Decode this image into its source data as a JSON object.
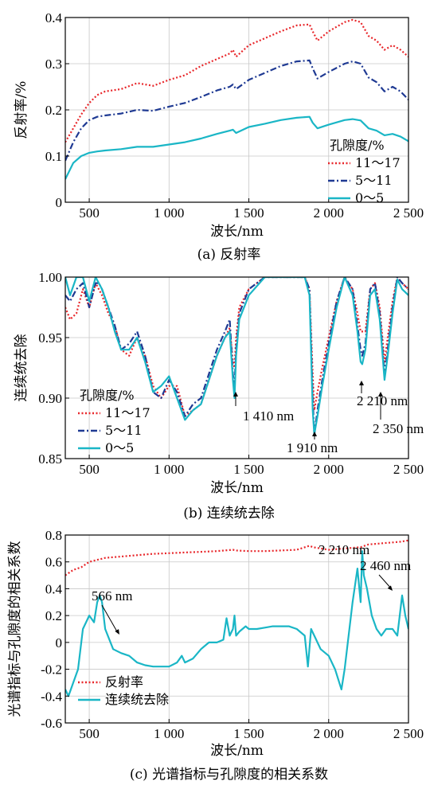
{
  "colors": {
    "red": "#e8262a",
    "blue": "#1f3a93",
    "cyan": "#1ab6c6"
  },
  "chart_data": [
    {
      "type": "line",
      "caption": "(a) 反射率",
      "xlabel": "波长/nm",
      "ylabel": "反射率/%",
      "xlim": [
        350,
        2500
      ],
      "ylim": [
        0,
        0.4
      ],
      "xticks": [
        500,
        1000,
        1500,
        2000,
        2500
      ],
      "xtick_labels": [
        "500",
        "1 000",
        "1 500",
        "2 000",
        "2 500"
      ],
      "yticks": [
        0,
        0.1,
        0.2,
        0.3,
        0.4
      ],
      "ytick_labels": [
        "0",
        "0.1",
        "0.2",
        "0.3",
        "0.4"
      ],
      "legend_title": "孔隙度/%",
      "series": [
        {
          "name": "11～17",
          "style": "dotted",
          "color": "#e8262a",
          "x": [
            350,
            400,
            450,
            500,
            550,
            600,
            700,
            800,
            900,
            1000,
            1100,
            1200,
            1300,
            1380,
            1400,
            1420,
            1500,
            1600,
            1700,
            1800,
            1880,
            1900,
            1930,
            2000,
            2100,
            2150,
            2200,
            2250,
            2300,
            2350,
            2400,
            2450,
            2500
          ],
          "y": [
            0.13,
            0.16,
            0.19,
            0.215,
            0.232,
            0.24,
            0.245,
            0.258,
            0.252,
            0.265,
            0.275,
            0.295,
            0.31,
            0.322,
            0.33,
            0.315,
            0.34,
            0.355,
            0.37,
            0.383,
            0.385,
            0.37,
            0.35,
            0.37,
            0.39,
            0.395,
            0.39,
            0.36,
            0.35,
            0.33,
            0.34,
            0.33,
            0.315
          ]
        },
        {
          "name": "5～11",
          "style": "dashdot",
          "color": "#1f3a93",
          "x": [
            350,
            400,
            450,
            500,
            550,
            600,
            700,
            800,
            900,
            1000,
            1100,
            1200,
            1300,
            1380,
            1400,
            1420,
            1500,
            1600,
            1700,
            1800,
            1880,
            1900,
            1930,
            2000,
            2100,
            2150,
            2200,
            2250,
            2300,
            2350,
            2400,
            2450,
            2500
          ],
          "y": [
            0.09,
            0.13,
            0.16,
            0.178,
            0.185,
            0.188,
            0.192,
            0.2,
            0.198,
            0.207,
            0.215,
            0.228,
            0.242,
            0.25,
            0.255,
            0.245,
            0.265,
            0.28,
            0.295,
            0.305,
            0.307,
            0.29,
            0.268,
            0.282,
            0.3,
            0.305,
            0.3,
            0.27,
            0.26,
            0.24,
            0.25,
            0.24,
            0.222
          ]
        },
        {
          "name": "0～5",
          "style": "solid",
          "color": "#1ab6c6",
          "x": [
            350,
            400,
            450,
            500,
            550,
            600,
            700,
            800,
            900,
            1000,
            1100,
            1200,
            1300,
            1380,
            1400,
            1420,
            1500,
            1600,
            1700,
            1800,
            1880,
            1900,
            1930,
            2000,
            2100,
            2150,
            2200,
            2250,
            2300,
            2350,
            2400,
            2450,
            2500
          ],
          "y": [
            0.05,
            0.085,
            0.1,
            0.107,
            0.11,
            0.112,
            0.115,
            0.12,
            0.12,
            0.125,
            0.13,
            0.138,
            0.148,
            0.155,
            0.157,
            0.15,
            0.163,
            0.17,
            0.178,
            0.183,
            0.185,
            0.172,
            0.16,
            0.168,
            0.178,
            0.18,
            0.177,
            0.16,
            0.155,
            0.145,
            0.148,
            0.142,
            0.132
          ]
        }
      ]
    },
    {
      "type": "line",
      "caption": "(b) 连续统去除",
      "xlabel": "波长/nm",
      "ylabel": "连续统去除",
      "xlim": [
        350,
        2500
      ],
      "ylim": [
        0.85,
        1.0
      ],
      "xticks": [
        500,
        1000,
        1500,
        2000,
        2500
      ],
      "xtick_labels": [
        "500",
        "1 000",
        "1 500",
        "2 000",
        "2 500"
      ],
      "yticks": [
        0.85,
        0.9,
        0.95,
        1.0
      ],
      "ytick_labels": [
        "0.85",
        "0.90",
        "0.95",
        "1.00"
      ],
      "legend_title": "孔隙度/%",
      "annotations": [
        {
          "text": "1 410 nm",
          "x": 1410,
          "y": 0.905
        },
        {
          "text": "1 910 nm",
          "x": 1910,
          "y": 0.868
        },
        {
          "text": "2 210 nm",
          "x": 2210,
          "y": 0.918
        },
        {
          "text": "2 350 nm",
          "x": 2350,
          "y": 0.918
        }
      ],
      "series": [
        {
          "name": "11～17",
          "style": "dotted",
          "color": "#e8262a",
          "x": [
            350,
            380,
            420,
            460,
            500,
            540,
            560,
            580,
            620,
            660,
            700,
            750,
            800,
            850,
            900,
            950,
            1000,
            1050,
            1100,
            1150,
            1200,
            1250,
            1300,
            1350,
            1380,
            1400,
            1410,
            1420,
            1440,
            1500,
            1600,
            1700,
            1800,
            1850,
            1880,
            1900,
            1910,
            1930,
            1960,
            2000,
            2050,
            2100,
            2150,
            2180,
            2200,
            2210,
            2230,
            2260,
            2290,
            2320,
            2350,
            2370,
            2400,
            2430,
            2460,
            2500
          ],
          "y": [
            0.975,
            0.965,
            0.97,
            0.99,
            0.975,
            0.995,
            0.99,
            0.985,
            0.97,
            0.96,
            0.94,
            0.935,
            0.95,
            0.935,
            0.91,
            0.9,
            0.91,
            0.91,
            0.885,
            0.89,
            0.895,
            0.915,
            0.935,
            0.95,
            0.958,
            0.93,
            0.925,
            0.95,
            0.975,
            0.99,
            1.0,
            1.0,
            1.0,
            1.0,
            0.99,
            0.92,
            0.89,
            0.905,
            0.925,
            0.95,
            0.98,
            1.0,
            0.99,
            0.97,
            0.955,
            0.955,
            0.955,
            0.99,
            0.995,
            0.975,
            0.93,
            0.95,
            0.98,
            1.0,
            0.995,
            0.99
          ]
        },
        {
          "name": "5～11",
          "style": "dashdot",
          "color": "#1f3a93",
          "x": [
            350,
            380,
            420,
            460,
            500,
            540,
            560,
            580,
            620,
            660,
            700,
            750,
            800,
            850,
            900,
            950,
            1000,
            1050,
            1100,
            1150,
            1200,
            1250,
            1300,
            1350,
            1380,
            1400,
            1410,
            1420,
            1440,
            1500,
            1600,
            1700,
            1800,
            1850,
            1880,
            1900,
            1910,
            1930,
            1960,
            2000,
            2050,
            2100,
            2150,
            2180,
            2200,
            2210,
            2230,
            2260,
            2290,
            2320,
            2350,
            2370,
            2400,
            2430,
            2460,
            2500
          ],
          "y": [
            0.985,
            0.98,
            0.99,
            0.995,
            0.975,
            0.995,
            0.995,
            0.99,
            0.975,
            0.96,
            0.94,
            0.945,
            0.955,
            0.935,
            0.905,
            0.9,
            0.915,
            0.905,
            0.885,
            0.895,
            0.9,
            0.92,
            0.94,
            0.955,
            0.965,
            0.92,
            0.91,
            0.94,
            0.97,
            0.99,
            1.0,
            1.0,
            1.0,
            1.0,
            0.99,
            0.9,
            0.87,
            0.89,
            0.915,
            0.945,
            0.98,
            1.0,
            0.99,
            0.96,
            0.94,
            0.935,
            0.945,
            0.99,
            0.995,
            0.97,
            0.92,
            0.94,
            0.975,
            1.0,
            0.995,
            0.99
          ]
        },
        {
          "name": "0～5",
          "style": "solid",
          "color": "#1ab6c6",
          "x": [
            350,
            380,
            420,
            460,
            500,
            540,
            560,
            580,
            620,
            660,
            700,
            750,
            800,
            850,
            900,
            950,
            1000,
            1050,
            1100,
            1150,
            1200,
            1250,
            1300,
            1350,
            1380,
            1400,
            1410,
            1420,
            1440,
            1500,
            1600,
            1700,
            1800,
            1850,
            1880,
            1900,
            1910,
            1930,
            1960,
            2000,
            2050,
            2100,
            2150,
            2180,
            2200,
            2210,
            2230,
            2260,
            2290,
            2320,
            2350,
            2370,
            2400,
            2430,
            2460,
            2500
          ],
          "y": [
            1.0,
            0.985,
            1.0,
            1.0,
            0.98,
            1.0,
            0.995,
            0.99,
            0.975,
            0.955,
            0.94,
            0.94,
            0.95,
            0.93,
            0.905,
            0.91,
            0.918,
            0.9,
            0.882,
            0.89,
            0.895,
            0.915,
            0.935,
            0.95,
            0.955,
            0.915,
            0.9,
            0.935,
            0.965,
            0.985,
            1.0,
            1.0,
            1.0,
            1.0,
            0.985,
            0.89,
            0.87,
            0.885,
            0.91,
            0.94,
            0.975,
            1.0,
            0.985,
            0.955,
            0.93,
            0.928,
            0.94,
            0.985,
            0.99,
            0.965,
            0.915,
            0.935,
            0.97,
            0.998,
            0.99,
            0.985
          ]
        }
      ]
    },
    {
      "type": "line",
      "caption": "(c) 光谱指标与孔隙度的相关系数",
      "xlabel": "波长/nm",
      "ylabel": "光谱指标与孔隙度的相关系数",
      "xlim": [
        350,
        2500
      ],
      "ylim": [
        -0.6,
        0.8
      ],
      "xticks": [
        500,
        1000,
        1500,
        2000,
        2500
      ],
      "xtick_labels": [
        "500",
        "1 000",
        "1 500",
        "2 000",
        "2 500"
      ],
      "yticks": [
        -0.6,
        -0.4,
        -0.2,
        0,
        0.2,
        0.4,
        0.6,
        0.8
      ],
      "ytick_labels": [
        "-0.6",
        "-0.4",
        "-0.2",
        "0",
        "0.2",
        "0.4",
        "0.6",
        "0.8"
      ],
      "annotations": [
        {
          "text": "566 nm",
          "x": 566,
          "y": 0.35
        },
        {
          "text": "2 210 nm",
          "x": 2210,
          "y": 0.68
        },
        {
          "text": "2 460 nm",
          "x": 2460,
          "y": 0.35
        }
      ],
      "series": [
        {
          "name": "反射率",
          "style": "dotted",
          "color": "#e8262a",
          "x": [
            350,
            400,
            450,
            500,
            600,
            700,
            800,
            900,
            1000,
            1100,
            1200,
            1300,
            1400,
            1420,
            1500,
            1600,
            1700,
            1800,
            1880,
            1900,
            1950,
            2000,
            2100,
            2200,
            2250,
            2300,
            2350,
            2400,
            2450,
            2500
          ],
          "y": [
            0.5,
            0.54,
            0.56,
            0.6,
            0.63,
            0.64,
            0.65,
            0.66,
            0.665,
            0.67,
            0.675,
            0.68,
            0.69,
            0.685,
            0.68,
            0.68,
            0.685,
            0.69,
            0.72,
            0.71,
            0.7,
            0.69,
            0.7,
            0.71,
            0.73,
            0.735,
            0.74,
            0.745,
            0.75,
            0.76
          ]
        },
        {
          "name": "连续统去除",
          "style": "solid",
          "color": "#1ab6c6",
          "x": [
            350,
            370,
            400,
            430,
            460,
            500,
            530,
            550,
            566,
            580,
            600,
            650,
            700,
            750,
            800,
            850,
            900,
            950,
            1000,
            1050,
            1080,
            1100,
            1150,
            1200,
            1250,
            1300,
            1340,
            1360,
            1380,
            1400,
            1410,
            1420,
            1440,
            1480,
            1500,
            1550,
            1600,
            1650,
            1700,
            1750,
            1800,
            1850,
            1870,
            1890,
            1910,
            1930,
            1950,
            2000,
            2040,
            2080,
            2100,
            2120,
            2150,
            2180,
            2200,
            2210,
            2220,
            2240,
            2270,
            2300,
            2330,
            2360,
            2400,
            2430,
            2460,
            2480,
            2500
          ],
          "y": [
            -0.35,
            -0.4,
            -0.3,
            -0.2,
            0.1,
            0.2,
            0.15,
            0.3,
            0.35,
            0.3,
            0.1,
            -0.05,
            -0.08,
            -0.1,
            -0.15,
            -0.17,
            -0.18,
            -0.18,
            -0.18,
            -0.15,
            -0.1,
            -0.15,
            -0.12,
            -0.05,
            0.0,
            0.0,
            0.02,
            0.18,
            0.05,
            0.1,
            0.2,
            0.05,
            0.08,
            0.12,
            0.1,
            0.1,
            0.11,
            0.12,
            0.12,
            0.12,
            0.1,
            0.05,
            -0.18,
            0.1,
            0.05,
            0.0,
            -0.05,
            -0.1,
            -0.2,
            -0.35,
            -0.2,
            0.0,
            0.3,
            0.55,
            0.3,
            0.68,
            0.5,
            0.4,
            0.2,
            0.1,
            0.05,
            0.1,
            0.1,
            0.05,
            0.35,
            0.2,
            0.1
          ]
        }
      ]
    }
  ]
}
